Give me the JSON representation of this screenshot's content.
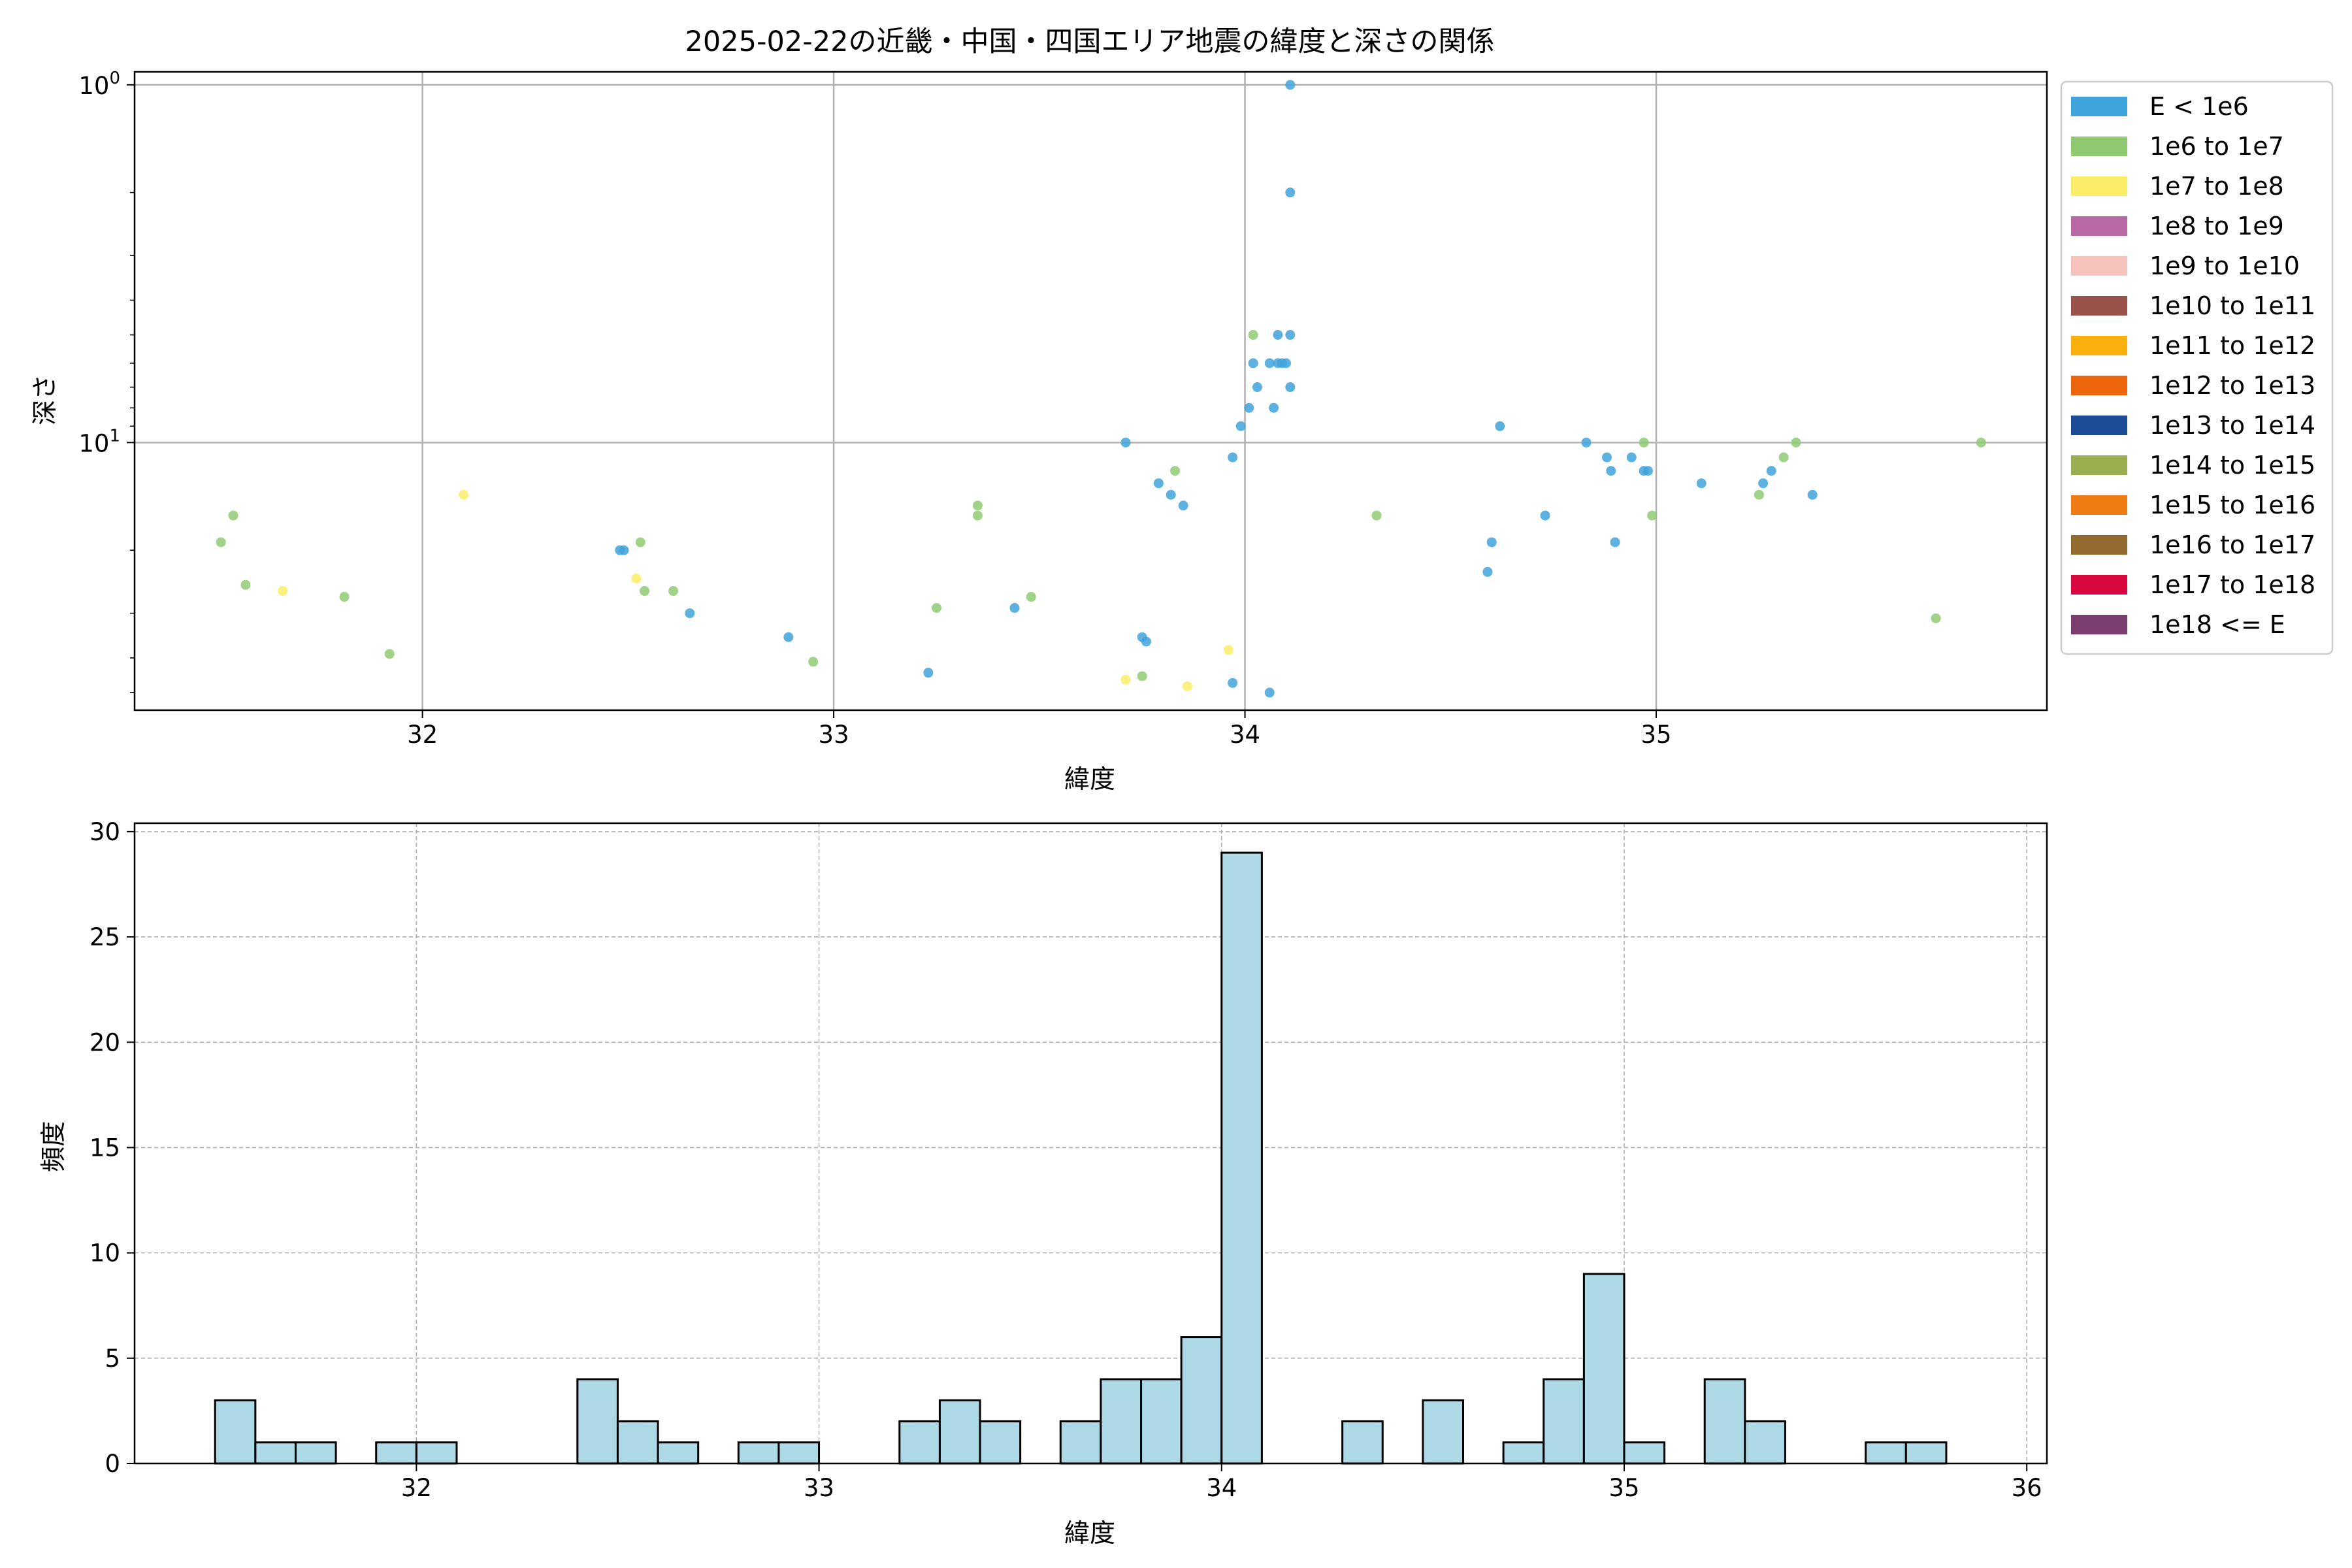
{
  "chart_data": [
    {
      "type": "scatter",
      "title": "2025-02-22の近畿・中国・四国エリア地震の緯度と深さの関係",
      "xlabel": "緯度",
      "ylabel": "深さ",
      "xlim": [
        31.3,
        35.95
      ],
      "ylim": [
        56,
        0.92
      ],
      "y_scale": "log",
      "y_inverted": true,
      "grid": true,
      "legend_placement": "outside-right",
      "x_ticks": [
        {
          "v": 32,
          "label": "32"
        },
        {
          "v": 33,
          "label": "33"
        },
        {
          "v": 34,
          "label": "34"
        },
        {
          "v": 35,
          "label": "35"
        }
      ],
      "y_ticks": [
        {
          "v": 1,
          "label": "10^0",
          "base": "10",
          "exp": "0"
        },
        {
          "v": 10,
          "label": "10^1",
          "base": "10",
          "exp": "1"
        }
      ],
      "legend": [
        {
          "label": "E < 1e6",
          "color": "#3fa3dc"
        },
        {
          "label": "1e6 to 1e7",
          "color": "#8fca73"
        },
        {
          "label": "1e7 to 1e8",
          "color": "#fced68"
        },
        {
          "label": "1e8 to 1e9",
          "color": "#b868a4"
        },
        {
          "label": "1e9 to 1e10",
          "color": "#f5c3bc"
        },
        {
          "label": "1e10 to 1e11",
          "color": "#9a534a"
        },
        {
          "label": "1e11 to 1e12",
          "color": "#f7b00c"
        },
        {
          "label": "1e12 to 1e13",
          "color": "#ec650c"
        },
        {
          "label": "1e13 to 1e14",
          "color": "#1c4c96"
        },
        {
          "label": "1e14 to 1e15",
          "color": "#9aae50"
        },
        {
          "label": "1e15 to 1e16",
          "color": "#ef7c12"
        },
        {
          "label": "1e16 to 1e17",
          "color": "#936a2f"
        },
        {
          "label": "1e17 to 1e18",
          "color": "#d9083e"
        },
        {
          "label": "1e18 <= E",
          "color": "#7a3f6e"
        }
      ],
      "series": [
        {
          "name": "E < 1e6",
          "color": "#3fa3dc",
          "points": [
            [
              34.11,
              1
            ],
            [
              34.11,
              2
            ],
            [
              34.11,
              5
            ],
            [
              34.08,
              5
            ],
            [
              34.02,
              6
            ],
            [
              34.06,
              6
            ],
            [
              34.08,
              6
            ],
            [
              34.09,
              6
            ],
            [
              34.1,
              6
            ],
            [
              34.03,
              7
            ],
            [
              34.11,
              7
            ],
            [
              34.01,
              8
            ],
            [
              34.07,
              8
            ],
            [
              33.99,
              9
            ],
            [
              34.62,
              9
            ],
            [
              33.71,
              10
            ],
            [
              34.83,
              10
            ],
            [
              33.97,
              11
            ],
            [
              34.88,
              11
            ],
            [
              34.94,
              11
            ],
            [
              34.89,
              12
            ],
            [
              34.97,
              12
            ],
            [
              34.98,
              12
            ],
            [
              35.28,
              12
            ],
            [
              33.79,
              13
            ],
            [
              35.11,
              13
            ],
            [
              35.26,
              13
            ],
            [
              33.82,
              14
            ],
            [
              35.38,
              14
            ],
            [
              33.85,
              15
            ],
            [
              34.73,
              16
            ],
            [
              32.48,
              20
            ],
            [
              32.49,
              20
            ],
            [
              34.6,
              19
            ],
            [
              34.9,
              19
            ],
            [
              34.59,
              23
            ],
            [
              32.65,
              30
            ],
            [
              33.44,
              29
            ],
            [
              32.89,
              35
            ],
            [
              33.75,
              35
            ],
            [
              33.76,
              36
            ],
            [
              33.23,
              44
            ],
            [
              33.97,
              47
            ],
            [
              34.06,
              50
            ]
          ]
        },
        {
          "name": "1e6 to 1e7",
          "color": "#8fca73",
          "points": [
            [
              34.02,
              5
            ],
            [
              33.83,
              12
            ],
            [
              34.97,
              10
            ],
            [
              35.31,
              11
            ],
            [
              35.34,
              10
            ],
            [
              35.79,
              10
            ],
            [
              35.25,
              14
            ],
            [
              33.35,
              15
            ],
            [
              33.35,
              16
            ],
            [
              34.32,
              16
            ],
            [
              34.99,
              16
            ],
            [
              31.54,
              16
            ],
            [
              31.51,
              19
            ],
            [
              32.53,
              19
            ],
            [
              31.57,
              25
            ],
            [
              32.61,
              26
            ],
            [
              31.81,
              27
            ],
            [
              32.54,
              26
            ],
            [
              33.48,
              27
            ],
            [
              33.25,
              29
            ],
            [
              35.68,
              31
            ],
            [
              31.92,
              39
            ],
            [
              32.95,
              41
            ],
            [
              33.75,
              45
            ]
          ]
        },
        {
          "name": "1e7 to 1e8",
          "color": "#fced68",
          "points": [
            [
              32.1,
              14
            ],
            [
              31.66,
              26
            ],
            [
              32.52,
              24
            ],
            [
              33.96,
              38
            ],
            [
              33.71,
              46
            ],
            [
              33.86,
              48
            ]
          ]
        }
      ]
    },
    {
      "type": "bar",
      "xlabel": "緯度",
      "ylabel": "頻度",
      "xlim": [
        31.3,
        36.05
      ],
      "ylim": [
        0,
        30.4
      ],
      "grid": true,
      "grid_style": "dashed",
      "bar_color": "#add8e6",
      "edge_color": "#000000",
      "bin_width": 0.1,
      "x_ticks": [
        {
          "v": 32,
          "label": "32"
        },
        {
          "v": 33,
          "label": "33"
        },
        {
          "v": 34,
          "label": "34"
        },
        {
          "v": 35,
          "label": "35"
        },
        {
          "v": 36,
          "label": "36"
        }
      ],
      "y_ticks": [
        {
          "v": 0,
          "label": "0"
        },
        {
          "v": 5,
          "label": "5"
        },
        {
          "v": 10,
          "label": "10"
        },
        {
          "v": 15,
          "label": "15"
        },
        {
          "v": 20,
          "label": "20"
        },
        {
          "v": 25,
          "label": "25"
        },
        {
          "v": 30,
          "label": "30"
        }
      ],
      "bins": [
        {
          "x0": 31.5,
          "x1": 31.6,
          "count": 3
        },
        {
          "x0": 31.6,
          "x1": 31.7,
          "count": 1
        },
        {
          "x0": 31.7,
          "x1": 31.8,
          "count": 1
        },
        {
          "x0": 31.9,
          "x1": 32.0,
          "count": 1
        },
        {
          "x0": 32.0,
          "x1": 32.1,
          "count": 1
        },
        {
          "x0": 32.4,
          "x1": 32.5,
          "count": 4
        },
        {
          "x0": 32.5,
          "x1": 32.6,
          "count": 2
        },
        {
          "x0": 32.6,
          "x1": 32.7,
          "count": 1
        },
        {
          "x0": 32.8,
          "x1": 32.9,
          "count": 1
        },
        {
          "x0": 32.9,
          "x1": 33.0,
          "count": 1
        },
        {
          "x0": 33.2,
          "x1": 33.3,
          "count": 2
        },
        {
          "x0": 33.3,
          "x1": 33.4,
          "count": 3
        },
        {
          "x0": 33.4,
          "x1": 33.5,
          "count": 2
        },
        {
          "x0": 33.6,
          "x1": 33.7,
          "count": 2
        },
        {
          "x0": 33.7,
          "x1": 33.8,
          "count": 4
        },
        {
          "x0": 33.8,
          "x1": 33.9,
          "count": 4
        },
        {
          "x0": 33.9,
          "x1": 34.0,
          "count": 6
        },
        {
          "x0": 34.0,
          "x1": 34.1,
          "count": 29
        },
        {
          "x0": 34.3,
          "x1": 34.4,
          "count": 2
        },
        {
          "x0": 34.5,
          "x1": 34.6,
          "count": 3
        },
        {
          "x0": 34.7,
          "x1": 34.8,
          "count": 1
        },
        {
          "x0": 34.8,
          "x1": 34.9,
          "count": 4
        },
        {
          "x0": 34.9,
          "x1": 35.0,
          "count": 9
        },
        {
          "x0": 35.0,
          "x1": 35.1,
          "count": 1
        },
        {
          "x0": 35.2,
          "x1": 35.3,
          "count": 4
        },
        {
          "x0": 35.3,
          "x1": 35.4,
          "count": 2
        },
        {
          "x0": 35.6,
          "x1": 35.7,
          "count": 1
        },
        {
          "x0": 35.7,
          "x1": 35.8,
          "count": 1
        }
      ]
    }
  ]
}
